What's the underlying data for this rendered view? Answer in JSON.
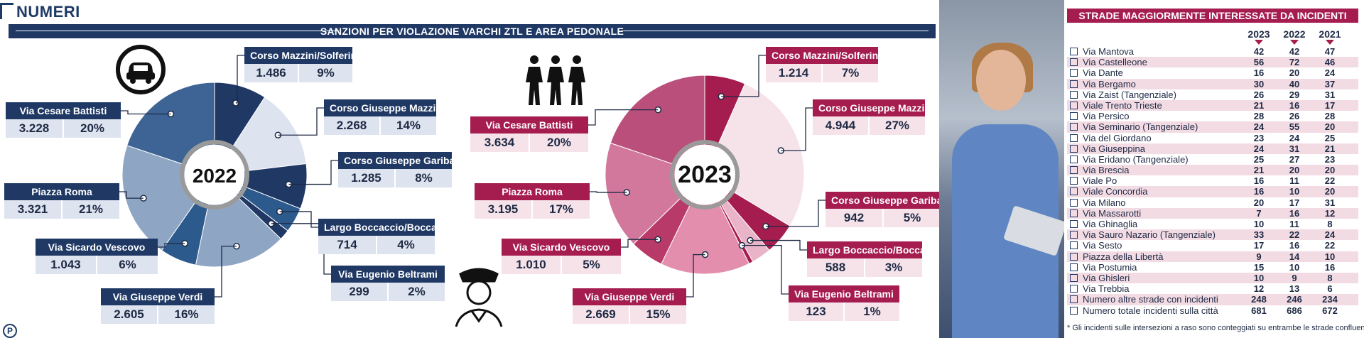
{
  "header": {
    "title": "NUMERI"
  },
  "banner": {
    "title": "SANZIONI PER VIOLAZIONE VARCHI ZTL E AREA PEDONALE"
  },
  "chart_data": [
    {
      "type": "pie",
      "year_label": "2022",
      "slices": [
        {
          "name": "Corso Mazzini/Solferino",
          "value": 1486,
          "value_label": "1.486",
          "pct": "9%"
        },
        {
          "name": "Corso Giuseppe Mazzini",
          "value": 2268,
          "value_label": "2.268",
          "pct": "14%"
        },
        {
          "name": "Corso Giuseppe Garibaldi",
          "value": 1285,
          "value_label": "1.285",
          "pct": "8%"
        },
        {
          "name": "Largo Boccaccio/Boccaccino",
          "value": 714,
          "value_label": "714",
          "pct": "4%"
        },
        {
          "name": "Via Eugenio Beltrami",
          "value": 299,
          "value_label": "299",
          "pct": "2%"
        },
        {
          "name": "Via Giuseppe Verdi",
          "value": 2605,
          "value_label": "2.605",
          "pct": "16%"
        },
        {
          "name": "Via Sicardo Vescovo",
          "value": 1043,
          "value_label": "1.043",
          "pct": "6%"
        },
        {
          "name": "Piazza Roma",
          "value": 3321,
          "value_label": "3.321",
          "pct": "21%"
        },
        {
          "name": "Via Cesare Battisti",
          "value": 3228,
          "value_label": "3.228",
          "pct": "20%"
        }
      ],
      "colors": [
        "#1f3864",
        "#dde3ef",
        "#1f3864",
        "#2d5a8c",
        "#1f3864",
        "#8ea6c4",
        "#2d5a8c",
        "#8ea6c4",
        "#3d6494"
      ]
    },
    {
      "type": "pie",
      "year_label": "2023",
      "slices": [
        {
          "name": "Corso Mazzini/Solferino",
          "value": 1214,
          "value_label": "1.214",
          "pct": "7%"
        },
        {
          "name": "Corso Giuseppe Mazzini",
          "value": 4944,
          "value_label": "4.944",
          "pct": "27%"
        },
        {
          "name": "Corso Giuseppe Garibaldi",
          "value": 942,
          "value_label": "942",
          "pct": "5%"
        },
        {
          "name": "Largo Boccaccio/Boccaccino",
          "value": 588,
          "value_label": "588",
          "pct": "3%"
        },
        {
          "name": "Via Eugenio Beltrami",
          "value": 123,
          "value_label": "123",
          "pct": "1%"
        },
        {
          "name": "Via Giuseppe Verdi",
          "value": 2669,
          "value_label": "2.669",
          "pct": "15%"
        },
        {
          "name": "Via Sicardo Vescovo",
          "value": 1010,
          "value_label": "1.010",
          "pct": "5%"
        },
        {
          "name": "Piazza Roma",
          "value": 3195,
          "value_label": "3.195",
          "pct": "17%"
        },
        {
          "name": "Via Cesare Battisti",
          "value": 3634,
          "value_label": "3.634",
          "pct": "20%"
        }
      ],
      "colors": [
        "#a51c4e",
        "#f6e3ea",
        "#a51c4e",
        "#e9b4c8",
        "#a51c4e",
        "#e48eae",
        "#b83a68",
        "#d2789c",
        "#b94f7a"
      ]
    },
    {
      "type": "table",
      "title": "STRADE MAGGIORMENTE INTERESSATE DA INCIDENTI",
      "columns": [
        "2023",
        "2022",
        "2021"
      ],
      "rows": [
        {
          "name": "Via Mantova",
          "values": [
            "42",
            "42",
            "47"
          ]
        },
        {
          "name": "Via Castelleone",
          "values": [
            "56",
            "72",
            "46"
          ]
        },
        {
          "name": "Via Dante",
          "values": [
            "16",
            "20",
            "24"
          ]
        },
        {
          "name": "Via Bergamo",
          "values": [
            "30",
            "40",
            "37"
          ]
        },
        {
          "name": "Via Zaist (Tangenziale)",
          "values": [
            "26",
            "29",
            "31"
          ]
        },
        {
          "name": "Viale Trento Trieste",
          "values": [
            "21",
            "16",
            "17"
          ]
        },
        {
          "name": "Via Persico",
          "values": [
            "28",
            "26",
            "28"
          ]
        },
        {
          "name": "Via Seminario (Tangenziale)",
          "values": [
            "24",
            "55",
            "20"
          ]
        },
        {
          "name": "Via del Giordano",
          "values": [
            "23",
            "24",
            "25"
          ]
        },
        {
          "name": "Via Giuseppina",
          "values": [
            "24",
            "31",
            "21"
          ]
        },
        {
          "name": "Via Eridano (Tangenziale)",
          "values": [
            "25",
            "27",
            "23"
          ]
        },
        {
          "name": "Via Brescia",
          "values": [
            "21",
            "20",
            "20"
          ]
        },
        {
          "name": "Viale Po",
          "values": [
            "16",
            "11",
            "22"
          ]
        },
        {
          "name": "Viale Concordia",
          "values": [
            "16",
            "10",
            "20"
          ]
        },
        {
          "name": "Via Milano",
          "values": [
            "20",
            "17",
            "31"
          ]
        },
        {
          "name": "Via Massarotti",
          "values": [
            "7",
            "16",
            "12"
          ]
        },
        {
          "name": "Via Ghinaglia",
          "values": [
            "10",
            "11",
            "8"
          ]
        },
        {
          "name": "Via Sauro Nazario (Tangenziale)",
          "values": [
            "33",
            "22",
            "24"
          ]
        },
        {
          "name": "Via Sesto",
          "values": [
            "17",
            "16",
            "22"
          ]
        },
        {
          "name": "Piazza della Libertà",
          "values": [
            "9",
            "14",
            "10"
          ]
        },
        {
          "name": "Via Postumia",
          "values": [
            "15",
            "10",
            "16"
          ]
        },
        {
          "name": "Via Ghisleri",
          "values": [
            "10",
            "9",
            "8"
          ]
        },
        {
          "name": "Via Trebbia",
          "values": [
            "12",
            "13",
            "6"
          ]
        },
        {
          "name": "Numero altre strade con incidenti",
          "values": [
            "248",
            "246",
            "234"
          ]
        },
        {
          "name": "Numero totale incidenti sulla città",
          "values": [
            "681",
            "686",
            "672"
          ]
        }
      ],
      "footnote": "* Gli incidenti sulle intersezioni a raso sono conteggiati su entrambe le strade confluenti"
    }
  ],
  "logo": {
    "letter": "P"
  },
  "colors": {
    "navy": "#1f3864",
    "crimson": "#a51c4e"
  }
}
